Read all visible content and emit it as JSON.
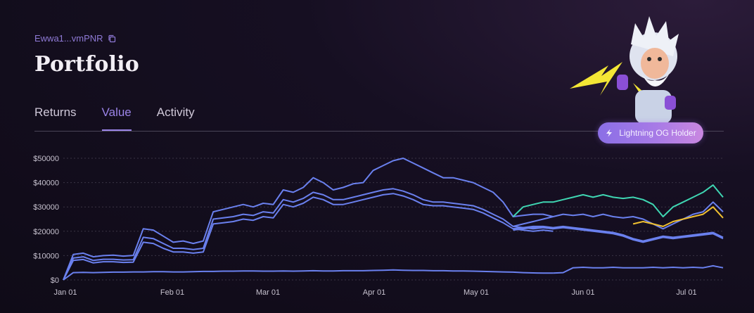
{
  "wallet": {
    "address": "Ewwa1...vmPNR"
  },
  "page": {
    "title": "Portfolio"
  },
  "tabs": [
    {
      "label": "Returns",
      "active": false
    },
    {
      "label": "Value",
      "active": true
    },
    {
      "label": "Activity",
      "active": false
    }
  ],
  "badge": {
    "label": "Lightning OG Holder",
    "icon": "lightning-icon"
  },
  "mascot": {
    "icon": "zeus-mascot-icon"
  },
  "colors": {
    "accent": "#9b84e8",
    "line_blue": "#6a80ee",
    "line_teal": "#3fd6b2",
    "line_yellow": "#f0c030"
  },
  "chart_data": {
    "type": "line",
    "title": "",
    "xlabel": "",
    "ylabel": "",
    "ylim": [
      0,
      50000
    ],
    "grid": true,
    "y_ticks": [
      "$0",
      "$10000",
      "$20000",
      "$30000",
      "$40000",
      "$50000"
    ],
    "x_ticks": [
      "Jan 01",
      "Feb 01",
      "Mar 01",
      "Apr 01",
      "May 01",
      "Jun 01",
      "Jul 01"
    ],
    "series": [
      {
        "color": "#6a80ee",
        "x": [
          0,
          1,
          2,
          3,
          4,
          5,
          6,
          7,
          8,
          9,
          10,
          11,
          12,
          13,
          14,
          15,
          16,
          17,
          18,
          19,
          20,
          21,
          22,
          23,
          24,
          25,
          26,
          27,
          28,
          29,
          30,
          31,
          32,
          33,
          34,
          35,
          36,
          37,
          38,
          39,
          40,
          41,
          42,
          43,
          44,
          45,
          46,
          47,
          48,
          49
        ],
        "y": [
          0,
          10500,
          11000,
          9500,
          10000,
          10200,
          9800,
          10100,
          21000,
          20500,
          18000,
          15500,
          16000,
          15000,
          16000,
          28000,
          29000,
          30000,
          31000,
          30000,
          31500,
          31000,
          37000,
          36000,
          38000,
          42000,
          40000,
          37000,
          38000,
          39500,
          40000,
          45000,
          47000,
          49000,
          50000,
          48000,
          46000,
          44000,
          42000,
          42000,
          41000,
          40000,
          38000,
          36000,
          32000,
          26000,
          26500,
          27000,
          27000,
          26000
        ]
      },
      {
        "color": "#6a80ee",
        "x": [
          0,
          1,
          2,
          3,
          4,
          5,
          6,
          7,
          8,
          9,
          10,
          11,
          12,
          13,
          14,
          15,
          16,
          17,
          18,
          19,
          20,
          21,
          22,
          23,
          24,
          25,
          26,
          27,
          28,
          29,
          30,
          31,
          32,
          33,
          34,
          35,
          36,
          37,
          38,
          39,
          40,
          41,
          42,
          43,
          44,
          45,
          46,
          47,
          48,
          49
        ],
        "y": [
          0,
          9000,
          9500,
          8000,
          8500,
          8500,
          8200,
          8300,
          17500,
          17000,
          15000,
          13000,
          13000,
          12500,
          13000,
          25000,
          25500,
          26000,
          27000,
          26500,
          28000,
          27500,
          33000,
          32000,
          33500,
          36000,
          35000,
          33000,
          33000,
          34000,
          35000,
          36000,
          37000,
          37500,
          36500,
          35000,
          33000,
          32000,
          32000,
          31500,
          31000,
          30500,
          29000,
          27000,
          25000,
          22000,
          21500,
          21000,
          21500,
          21000
        ]
      },
      {
        "color": "#6a80ee",
        "x": [
          0,
          1,
          2,
          3,
          4,
          5,
          6,
          7,
          8,
          9,
          10,
          11,
          12,
          13,
          14,
          15,
          16,
          17,
          18,
          19,
          20,
          21,
          22,
          23,
          24,
          25,
          26,
          27,
          28,
          29,
          30,
          31,
          32,
          33,
          34,
          35,
          36,
          37,
          38,
          39,
          40,
          41,
          42,
          43,
          44,
          45,
          46,
          47,
          48,
          49
        ],
        "y": [
          0,
          8000,
          8400,
          7000,
          7500,
          7500,
          7200,
          7300,
          15500,
          15000,
          13000,
          11500,
          11500,
          11000,
          11500,
          23000,
          23500,
          24000,
          25000,
          24500,
          26000,
          25500,
          31000,
          30000,
          31500,
          34000,
          33000,
          31000,
          31000,
          32000,
          33000,
          34000,
          35000,
          35500,
          34500,
          33000,
          31000,
          30500,
          30500,
          30000,
          29500,
          29000,
          27500,
          25500,
          23500,
          21000,
          20500,
          20000,
          20500,
          20000
        ]
      },
      {
        "color": "#6a80ee",
        "x": [
          0,
          1,
          2,
          3,
          4,
          5,
          6,
          7,
          8,
          9,
          10,
          11,
          12,
          13,
          14,
          15,
          16,
          17,
          18,
          19,
          20,
          21,
          22,
          23,
          24,
          25,
          26,
          27,
          28,
          29,
          30,
          31,
          32,
          33,
          34,
          35,
          36,
          37,
          38,
          39,
          40,
          41,
          42,
          43,
          44,
          45,
          46,
          47,
          48,
          49
        ],
        "y": [
          0,
          3000,
          3100,
          3000,
          3100,
          3200,
          3200,
          3300,
          3300,
          3400,
          3400,
          3300,
          3300,
          3400,
          3500,
          3500,
          3600,
          3600,
          3700,
          3700,
          3600,
          3600,
          3700,
          3600,
          3700,
          3800,
          3700,
          3700,
          3800,
          3800,
          3800,
          3900,
          4000,
          4100,
          4000,
          3900,
          3900,
          3800,
          3800,
          3700,
          3700,
          3600,
          3500,
          3400,
          3300,
          3200,
          3000,
          2900,
          2800,
          2800
        ]
      },
      {
        "color": "#3fd6b2",
        "x": [
          45,
          46,
          47,
          48,
          49,
          50,
          51,
          52,
          53,
          54,
          55,
          56,
          57,
          58,
          59,
          60,
          61,
          62,
          63,
          64,
          65,
          66
        ],
        "y": [
          26000,
          30000,
          31000,
          32000,
          32000,
          33000,
          34000,
          35000,
          34000,
          35000,
          34000,
          33500,
          34000,
          33000,
          31000,
          26000,
          30000,
          32000,
          34000,
          36000,
          39000,
          34000
        ]
      },
      {
        "color": "#6a80ee",
        "x": [
          45,
          46,
          47,
          48,
          49,
          50,
          51,
          52,
          53,
          54,
          55,
          56,
          57,
          58,
          59,
          60,
          61,
          62,
          63,
          64,
          65,
          66
        ],
        "y": [
          22000,
          23000,
          24000,
          25000,
          26000,
          27000,
          26500,
          27000,
          26000,
          27000,
          26000,
          25500,
          26000,
          25000,
          23000,
          21000,
          23000,
          25000,
          27000,
          28000,
          32000,
          28000
        ]
      },
      {
        "color": "#f0c030",
        "x": [
          57,
          58,
          59,
          60,
          61,
          62,
          63,
          64,
          65,
          66
        ],
        "y": [
          23000,
          24000,
          23000,
          22000,
          24000,
          25000,
          26000,
          27000,
          30000,
          25500
        ]
      },
      {
        "color": "#6a80ee",
        "x": [
          45,
          46,
          47,
          48,
          49,
          50,
          51,
          52,
          53,
          54,
          55,
          56,
          57,
          58,
          59,
          60,
          61,
          62,
          63,
          64,
          65,
          66
        ],
        "y": [
          21000,
          21500,
          22000,
          22000,
          21500,
          22000,
          21500,
          21000,
          20500,
          20000,
          19500,
          18500,
          17000,
          16000,
          17000,
          18000,
          17500,
          18000,
          18500,
          19000,
          19500,
          17500
        ]
      },
      {
        "color": "#6a80ee",
        "x": [
          45,
          46,
          47,
          48,
          49,
          50,
          51,
          52,
          53,
          54,
          55,
          56,
          57,
          58,
          59,
          60,
          61,
          62,
          63,
          64,
          65,
          66
        ],
        "y": [
          20500,
          21000,
          21500,
          21500,
          21000,
          21500,
          21000,
          20500,
          20000,
          19500,
          19000,
          18000,
          16500,
          15500,
          16500,
          17500,
          17000,
          17500,
          18000,
          18500,
          19000,
          17000
        ]
      },
      {
        "color": "#6a80ee",
        "x": [
          49,
          50,
          51,
          52,
          53,
          54,
          55,
          56,
          57,
          58,
          59,
          60,
          61,
          62,
          63,
          64,
          65,
          66
        ],
        "y": [
          2800,
          3000,
          5000,
          5200,
          5000,
          5000,
          5200,
          5000,
          5000,
          5000,
          5200,
          5000,
          5200,
          5000,
          5200,
          5000,
          5800,
          5000
        ]
      }
    ]
  }
}
